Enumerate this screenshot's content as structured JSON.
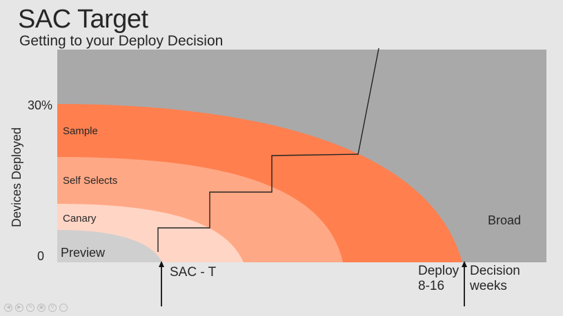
{
  "slide": {
    "title": "SAC Target",
    "subtitle": "Getting to your Deploy Decision"
  },
  "axes": {
    "ylabel": "Devices Deployed",
    "y_tick_top": "30%",
    "y_tick_zero": "0"
  },
  "rings": {
    "sample": "Sample",
    "self_selects": "Self Selects",
    "canary": "Canary",
    "preview": "Preview",
    "broad": "Broad"
  },
  "markers": {
    "sac_t": "SAC - T",
    "deploy_line1": "Deploy",
    "deploy_line2": "8-16",
    "decision_line1": "Decision",
    "decision_line2": "weeks"
  },
  "colors": {
    "background": "#e6e6e6",
    "broad": "#a9a9a9",
    "sample": "#ff7f4f",
    "self_selects": "#ffa885",
    "canary": "#ffd5c5",
    "preview": "#cfcfcf",
    "text": "#262626"
  },
  "nav_icons": [
    "prev-icon",
    "next-icon",
    "pen-icon",
    "slides-icon",
    "zoom-icon",
    "more-icon"
  ]
}
